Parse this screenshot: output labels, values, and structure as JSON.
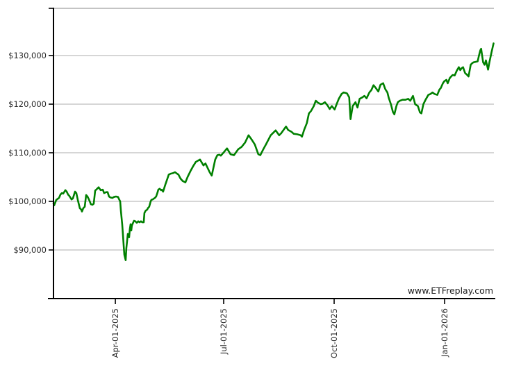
{
  "chart_data": {
    "type": "line",
    "title": "",
    "watermark": "www.ETFreplay.com",
    "legend": "none",
    "grid": "horizontal-only",
    "line_color": "#008000",
    "grid_color": "#c9c9c9",
    "axis_color": "#000000",
    "label_color": "#2a2a2a",
    "x_axis": {
      "unit": "days",
      "range": [
        0,
        368
      ],
      "ticks": [
        {
          "label": "Apr-01-2025",
          "day": 51.7
        },
        {
          "label": "Jul-01-2025",
          "day": 142.2
        },
        {
          "label": "Oct-01-2025",
          "day": 234.5
        },
        {
          "label": "Jan-01-2026",
          "day": 326.8
        }
      ]
    },
    "y_axis": {
      "unit": "USD",
      "range": [
        80000,
        139714
      ],
      "ticks": [
        {
          "label": "$90,000",
          "value": 90000
        },
        {
          "label": "$100,000",
          "value": 100000
        },
        {
          "label": "$110,000",
          "value": 110000
        },
        {
          "label": "$120,000",
          "value": 120000
        },
        {
          "label": "$130,000",
          "value": 130000
        }
      ]
    },
    "series": [
      {
        "name": "portfolio-value",
        "color": "#008000",
        "points": [
          [
            0,
            99600
          ],
          [
            0.6,
            99200
          ],
          [
            2.3,
            100300
          ],
          [
            4.6,
            100700
          ],
          [
            5.8,
            101400
          ],
          [
            7,
            101700
          ],
          [
            8.1,
            101600
          ],
          [
            9.9,
            102300
          ],
          [
            11,
            102000
          ],
          [
            12.2,
            101400
          ],
          [
            13.3,
            101100
          ],
          [
            15.1,
            100400
          ],
          [
            16.2,
            100600
          ],
          [
            18,
            102000
          ],
          [
            19.1,
            101700
          ],
          [
            20.3,
            100300
          ],
          [
            22,
            98600
          ],
          [
            23.2,
            98300
          ],
          [
            23.8,
            97900
          ],
          [
            24.9,
            98600
          ],
          [
            26.1,
            98900
          ],
          [
            27.3,
            101300
          ],
          [
            28.4,
            101000
          ],
          [
            29.6,
            100400
          ],
          [
            31.3,
            99400
          ],
          [
            32.5,
            99300
          ],
          [
            33.6,
            99500
          ],
          [
            34.8,
            102200
          ],
          [
            36.5,
            102600
          ],
          [
            37.7,
            102900
          ],
          [
            39.4,
            102300
          ],
          [
            41.2,
            102400
          ],
          [
            42.3,
            101700
          ],
          [
            44.1,
            101900
          ],
          [
            45.2,
            101900
          ],
          [
            46.4,
            101000
          ],
          [
            47.6,
            100800
          ],
          [
            49.3,
            100700
          ],
          [
            50.5,
            100900
          ],
          [
            52.2,
            101000
          ],
          [
            53.9,
            100900
          ],
          [
            55.1,
            100300
          ],
          [
            55.7,
            100000
          ],
          [
            56.3,
            98100
          ],
          [
            57.4,
            95300
          ],
          [
            58,
            93300
          ],
          [
            58.6,
            91000
          ],
          [
            59.2,
            89000
          ],
          [
            60.3,
            87900
          ],
          [
            60.9,
            90400
          ],
          [
            61.5,
            91900
          ],
          [
            62.1,
            93300
          ],
          [
            63.2,
            92600
          ],
          [
            63.8,
            94300
          ],
          [
            64.4,
            95300
          ],
          [
            65,
            94000
          ],
          [
            65.5,
            95000
          ],
          [
            66.7,
            95700
          ],
          [
            67.3,
            96000
          ],
          [
            68.4,
            95900
          ],
          [
            69.6,
            95600
          ],
          [
            70.8,
            95900
          ],
          [
            71.9,
            95700
          ],
          [
            73.1,
            95900
          ],
          [
            74.2,
            95700
          ],
          [
            75.4,
            95700
          ],
          [
            76,
            97600
          ],
          [
            77.1,
            98100
          ],
          [
            78.3,
            98300
          ],
          [
            78.9,
            98600
          ],
          [
            80,
            98900
          ],
          [
            81.2,
            100000
          ],
          [
            81.8,
            100300
          ],
          [
            82.9,
            100400
          ],
          [
            84.7,
            100700
          ],
          [
            85.8,
            101000
          ],
          [
            87,
            101900
          ],
          [
            87.6,
            102400
          ],
          [
            88.7,
            102600
          ],
          [
            89.9,
            102300
          ],
          [
            90.5,
            102400
          ],
          [
            91.6,
            102000
          ],
          [
            93.4,
            103400
          ],
          [
            95.1,
            104600
          ],
          [
            96.3,
            105500
          ],
          [
            98,
            105700
          ],
          [
            99.8,
            105800
          ],
          [
            101.5,
            106000
          ],
          [
            103.2,
            105700
          ],
          [
            104.4,
            105500
          ],
          [
            106.1,
            104700
          ],
          [
            107.9,
            104200
          ],
          [
            110.2,
            103900
          ],
          [
            112,
            105000
          ],
          [
            114.8,
            106400
          ],
          [
            116.6,
            107200
          ],
          [
            118.9,
            108100
          ],
          [
            122.4,
            108600
          ],
          [
            125.3,
            107400
          ],
          [
            127,
            107800
          ],
          [
            130.5,
            106000
          ],
          [
            132.2,
            105300
          ],
          [
            135.1,
            108600
          ],
          [
            136.9,
            109500
          ],
          [
            138.6,
            109600
          ],
          [
            139.8,
            109400
          ],
          [
            142.7,
            110200
          ],
          [
            145,
            110900
          ],
          [
            147.9,
            109700
          ],
          [
            150.8,
            109500
          ],
          [
            154.3,
            110700
          ],
          [
            157.2,
            111200
          ],
          [
            160.1,
            112100
          ],
          [
            163,
            113600
          ],
          [
            165.9,
            112600
          ],
          [
            168.2,
            111700
          ],
          [
            171.1,
            109700
          ],
          [
            172.8,
            109500
          ],
          [
            175.7,
            110900
          ],
          [
            177.5,
            111700
          ],
          [
            181.5,
            113600
          ],
          [
            185.6,
            114600
          ],
          [
            188.5,
            113600
          ],
          [
            190.2,
            114000
          ],
          [
            194.3,
            115400
          ],
          [
            196,
            114700
          ],
          [
            198.9,
            114300
          ],
          [
            200.7,
            113900
          ],
          [
            203.6,
            113800
          ],
          [
            206.5,
            113600
          ],
          [
            207.6,
            113300
          ],
          [
            209.4,
            114700
          ],
          [
            211.7,
            116100
          ],
          [
            213.4,
            118100
          ],
          [
            215.2,
            118600
          ],
          [
            217.5,
            119600
          ],
          [
            219.2,
            120700
          ],
          [
            221,
            120300
          ],
          [
            223.3,
            120000
          ],
          [
            225,
            120100
          ],
          [
            226.8,
            120400
          ],
          [
            229.1,
            119700
          ],
          [
            230.8,
            119000
          ],
          [
            232.6,
            119600
          ],
          [
            234.9,
            118900
          ],
          [
            236.6,
            120000
          ],
          [
            238.4,
            121100
          ],
          [
            240.7,
            122100
          ],
          [
            242.4,
            122400
          ],
          [
            244.2,
            122300
          ],
          [
            245.3,
            122200
          ],
          [
            247.1,
            121400
          ],
          [
            248.2,
            116900
          ],
          [
            250,
            119600
          ],
          [
            252.3,
            120400
          ],
          [
            254,
            119300
          ],
          [
            255.8,
            121100
          ],
          [
            258.1,
            121400
          ],
          [
            259.8,
            121700
          ],
          [
            261.6,
            121200
          ],
          [
            263.9,
            122400
          ],
          [
            265.6,
            122900
          ],
          [
            267.4,
            123900
          ],
          [
            269.1,
            123400
          ],
          [
            271.4,
            122600
          ],
          [
            273.2,
            124000
          ],
          [
            275.5,
            124300
          ],
          [
            277.2,
            123100
          ],
          [
            279,
            122400
          ],
          [
            280.1,
            121300
          ],
          [
            281.9,
            120000
          ],
          [
            283.6,
            118400
          ],
          [
            284.8,
            117900
          ],
          [
            286.5,
            119600
          ],
          [
            287.7,
            120400
          ],
          [
            289.4,
            120700
          ],
          [
            291.7,
            120900
          ],
          [
            294.1,
            120900
          ],
          [
            296.4,
            121100
          ],
          [
            298.1,
            120700
          ],
          [
            300.4,
            121700
          ],
          [
            302.2,
            120000
          ],
          [
            304.5,
            119600
          ],
          [
            306.2,
            118300
          ],
          [
            307.4,
            118100
          ],
          [
            309.1,
            120000
          ],
          [
            310.9,
            120900
          ],
          [
            313.2,
            121900
          ],
          [
            315,
            122100
          ],
          [
            316.7,
            122400
          ],
          [
            318.4,
            122100
          ],
          [
            320.7,
            121900
          ],
          [
            322.5,
            123000
          ],
          [
            323.6,
            123300
          ],
          [
            325.4,
            124300
          ],
          [
            326.5,
            124700
          ],
          [
            328.3,
            125000
          ],
          [
            329.4,
            124300
          ],
          [
            331.2,
            125400
          ],
          [
            332.3,
            125700
          ],
          [
            333.5,
            126000
          ],
          [
            335.2,
            125900
          ],
          [
            337,
            126900
          ],
          [
            338.7,
            127600
          ],
          [
            339.9,
            127000
          ],
          [
            341,
            127400
          ],
          [
            342.2,
            127600
          ],
          [
            343.9,
            126400
          ],
          [
            345.7,
            126000
          ],
          [
            346.8,
            125700
          ],
          [
            348.6,
            128100
          ],
          [
            349.7,
            128400
          ],
          [
            350.9,
            128600
          ],
          [
            352.6,
            128700
          ],
          [
            354.4,
            128800
          ],
          [
            355.5,
            130000
          ],
          [
            356.7,
            131100
          ],
          [
            357.3,
            131400
          ],
          [
            359,
            128600
          ],
          [
            360.2,
            128100
          ],
          [
            361.3,
            129000
          ],
          [
            363.1,
            127100
          ],
          [
            364.2,
            128600
          ],
          [
            366,
            130700
          ],
          [
            367.7,
            132500
          ]
        ]
      }
    ]
  }
}
